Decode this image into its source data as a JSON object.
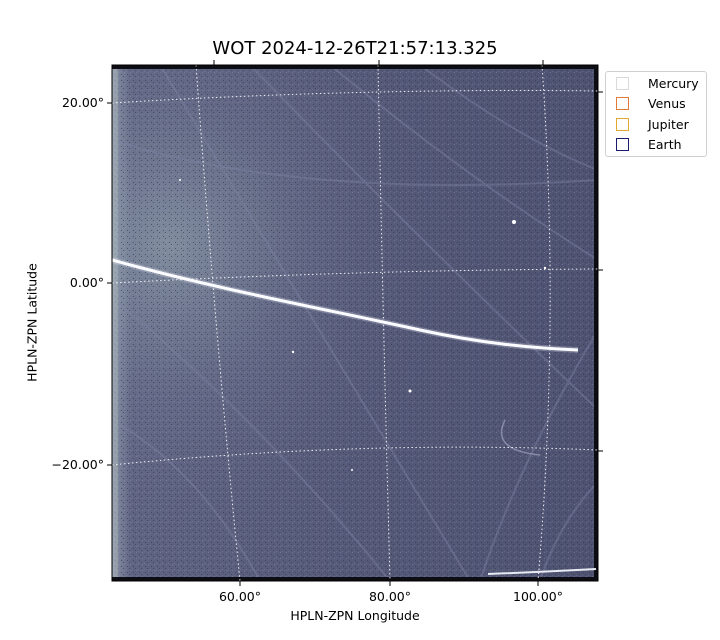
{
  "chart_data": {
    "type": "image",
    "title": "WOT 2024-12-26T21:57:13.325",
    "xlabel": "HPLN-ZPN Longitude",
    "ylabel": "HPLN-ZPN Latitude",
    "x_ticks": [
      "60.00°",
      "80.00°",
      "100.00°"
    ],
    "y_ticks": [
      "20.00°",
      "0.00°",
      "−20.00°"
    ],
    "x_tick_values": [
      60,
      80,
      100
    ],
    "y_tick_values": [
      20,
      0,
      -20
    ],
    "grid": "dotted coordinate grid",
    "legend_placement": "outside-top-right",
    "legend": [
      {
        "label": "Mercury",
        "color": "#d9d9d9"
      },
      {
        "label": "Venus",
        "color": "#e07b39"
      },
      {
        "label": "Jupiter",
        "color": "#e0a830"
      },
      {
        "label": "Earth",
        "color": "#1a1a6e"
      }
    ],
    "image_tint": "#5a5d7e"
  }
}
